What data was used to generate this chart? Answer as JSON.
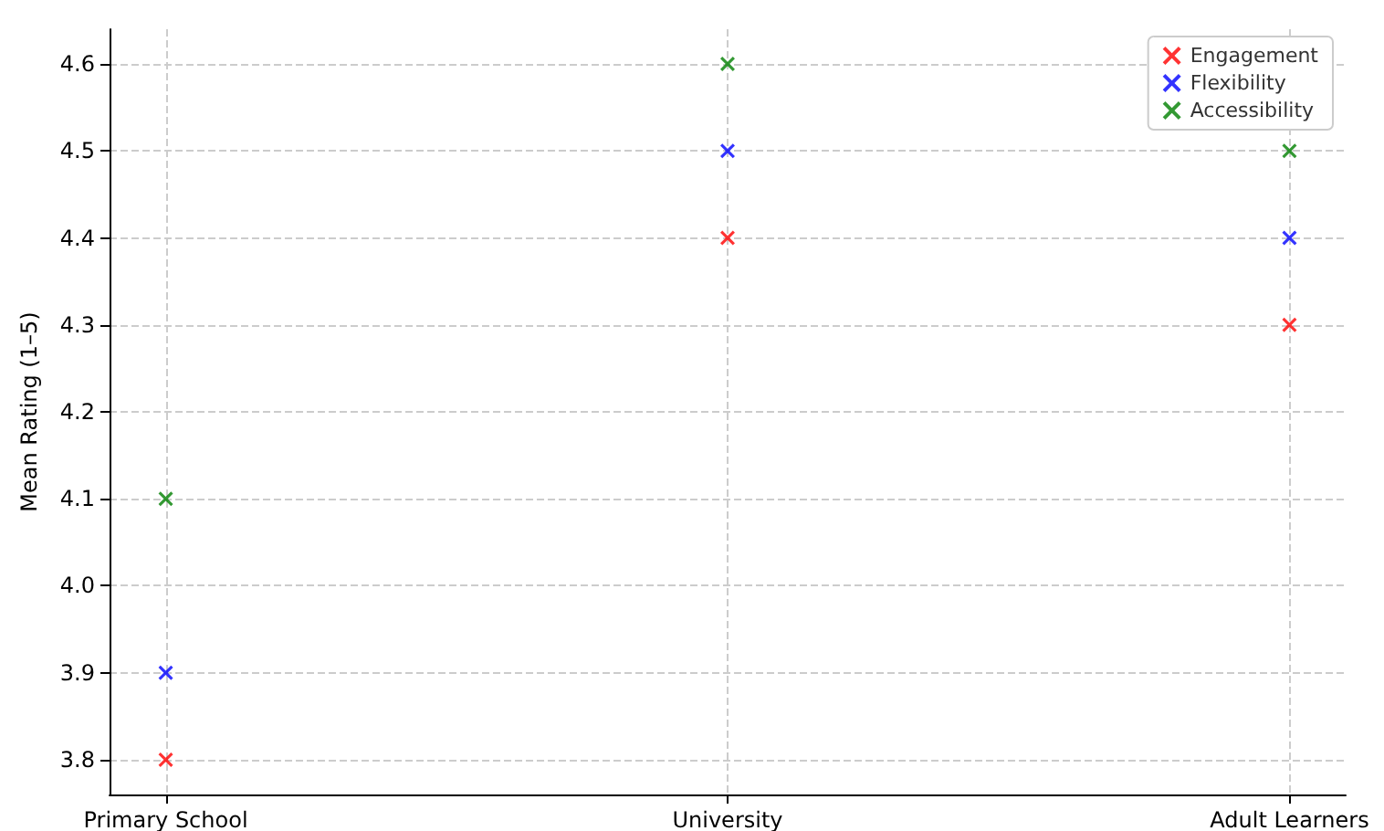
{
  "chart_data": {
    "type": "scatter",
    "ylabel": "Mean Rating (1–5)",
    "categories": [
      "Primary School",
      "University",
      "Adult Learners"
    ],
    "series": [
      {
        "name": "Engagement",
        "color": "#ff0000",
        "values": [
          3.8,
          4.4,
          4.3
        ]
      },
      {
        "name": "Flexibility",
        "color": "#0000ff",
        "values": [
          3.9,
          4.5,
          4.4
        ]
      },
      {
        "name": "Accessibility",
        "color": "#008000",
        "values": [
          4.1,
          4.6,
          4.5
        ]
      }
    ],
    "ylim": [
      3.76,
      4.64
    ],
    "yticks": [
      3.8,
      3.9,
      {
        "value": 4.0,
        "label": "4.0"
      },
      4.1,
      4.2,
      4.3,
      4.4,
      4.5,
      4.6
    ],
    "grid": true,
    "legend": "top right",
    "marker": "cross"
  }
}
